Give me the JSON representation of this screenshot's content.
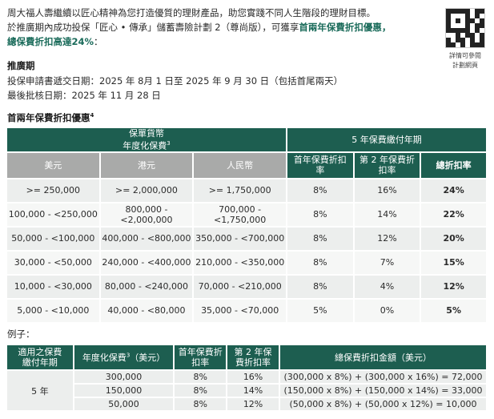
{
  "intro": {
    "line1": "周大福人壽繼續以匠心精神為您打造優質的理財產品，助您實踐不同人生階段的理財目標。",
    "line2_prefix": "於推廣期內成功投保「匠心 • 傳承」儲蓄壽險計劃 2（尊尚版），可獲享",
    "line2_highlight": "首兩年保費折扣優惠，",
    "line3_highlight": "總保費折扣高達24%",
    "line3_suffix": "："
  },
  "qr": {
    "icon": "qr-code-icon",
    "caption_1": "詳情可參閱",
    "caption_2": "計劃網頁"
  },
  "promo": {
    "title": "推廣期",
    "application_date": "投保申請書遞交日期：2025 年 8月 1 日至 2025 年 9 月 30 日（包括首尾兩天）",
    "approval_date": "最後批核日期：2025 年 11 月 28 日"
  },
  "discount": {
    "title": "首兩年保費折扣優惠",
    "title_sup": "4",
    "header": {
      "currency_title": "保單貨幣",
      "premium_title": "年度化保費",
      "premium_sup": "3",
      "period_title": "5 年保費繳付年期",
      "usd": "美元",
      "hkd": "港元",
      "rmb": "人民幣",
      "y1": "首年保費折扣率",
      "y2": "第 2 年保費折扣率",
      "total": "總折扣率"
    },
    "rows": [
      {
        "usd": ">= 250,000",
        "hkd": ">= 2,000,000",
        "rmb": ">= 1,750,000",
        "y1": "8%",
        "y2": "16%",
        "total": "24%"
      },
      {
        "usd": "100,000 - <250,000",
        "hkd": "800,000 - <2,000,000",
        "rmb": "700,000 - <1,750,000",
        "y1": "8%",
        "y2": "14%",
        "total": "22%"
      },
      {
        "usd": "50,000 - <100,000",
        "hkd": "400,000 - <800,000",
        "rmb": "350,000 - <700,000",
        "y1": "8%",
        "y2": "12%",
        "total": "20%"
      },
      {
        "usd": "30,000 - <50,000",
        "hkd": "240,000 - <400,000",
        "rmb": "210,000 - <350,000",
        "y1": "8%",
        "y2": "7%",
        "total": "15%"
      },
      {
        "usd": "10,000 - <30,000",
        "hkd": "80,000 - <240,000",
        "rmb": "70,000 - <210,000",
        "y1": "8%",
        "y2": "4%",
        "total": "12%"
      },
      {
        "usd": "5,000 - <10,000",
        "hkd": "40,000 - <80,000",
        "rmb": "35,000 - <70,000",
        "y1": "5%",
        "y2": "0%",
        "total": "5%"
      }
    ]
  },
  "example": {
    "title": "例子：",
    "header": {
      "period": "適用之保費繳付年期",
      "premium": "年度化保費",
      "premium_sup": "3",
      "premium_unit": "（美元）",
      "y1": "首年保費折扣率",
      "y2": "第 2 年保費折扣率",
      "amount": "總保費折扣金額（美元）"
    },
    "period_value": "5 年",
    "rows": [
      {
        "premium": "300,000",
        "y1": "8%",
        "y2": "16%",
        "amount": "(300,000 x 8%) + (300,000 x 16%) = 72,000"
      },
      {
        "premium": "150,000",
        "y1": "8%",
        "y2": "14%",
        "amount": "(150,000 x 8%) + (150,000 x 14%) = 33,000"
      },
      {
        "premium": "50,000",
        "y1": "8%",
        "y2": "12%",
        "amount": "(50,000 x 8%) + (50,000 x 12%) = 10,000"
      }
    ]
  }
}
